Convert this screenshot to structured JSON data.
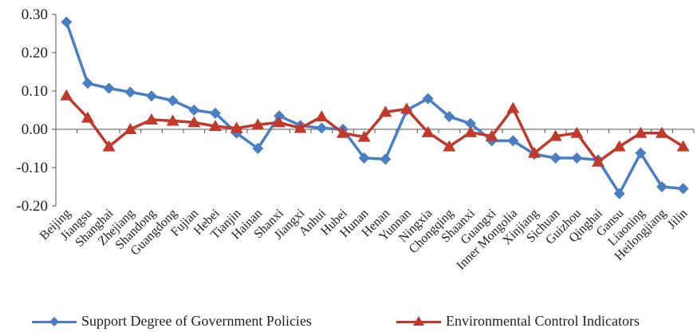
{
  "chart_data": {
    "type": "line",
    "categories": [
      "Beijing",
      "Jiangsu",
      "Shanghai",
      "Zhejiang",
      "Shandong",
      "Guangdong",
      "Fujian",
      "Hebei",
      "Tianjin",
      "Hainan",
      "Shanxi",
      "Jiangxi",
      "Anhui",
      "Hubei",
      "Hunan",
      "Henan",
      "Yunnan",
      "Ningxia",
      "Chongqing",
      "Shaanxi",
      "Guangxi",
      "Inner Mongolia",
      "Xinjiang",
      "Sichuan",
      "Guizhou",
      "Qinghai",
      "Gansu",
      "Liaoning",
      "Heilongjiang",
      "Jilin"
    ],
    "series": [
      {
        "name": "Support Degree of Government Policies",
        "color": "#4a7ec4",
        "marker": "diamond",
        "values": [
          0.28,
          0.12,
          0.107,
          0.097,
          0.087,
          0.075,
          0.05,
          0.042,
          -0.01,
          -0.05,
          0.035,
          0.01,
          0.003,
          0.0,
          -0.075,
          -0.078,
          0.05,
          0.08,
          0.033,
          0.015,
          -0.03,
          -0.03,
          -0.065,
          -0.075,
          -0.075,
          -0.08,
          -0.168,
          -0.062,
          -0.15,
          -0.155
        ]
      },
      {
        "name": "Environmental Control Indicators",
        "color": "#c0392b",
        "marker": "triangle",
        "values": [
          0.088,
          0.03,
          -0.045,
          0.0,
          0.025,
          0.022,
          0.018,
          0.008,
          0.003,
          0.012,
          0.018,
          0.003,
          0.033,
          -0.01,
          -0.02,
          0.045,
          0.053,
          -0.008,
          -0.045,
          -0.008,
          -0.018,
          0.055,
          -0.062,
          -0.018,
          -0.01,
          -0.085,
          -0.045,
          -0.01,
          -0.01,
          -0.045
        ]
      }
    ],
    "yticks": [
      "0.30",
      "0.20",
      "0.10",
      "0.00",
      "-0.10",
      "-0.20"
    ],
    "ylim": [
      -0.2,
      0.3
    ],
    "grid": false,
    "legend_position": "bottom"
  }
}
